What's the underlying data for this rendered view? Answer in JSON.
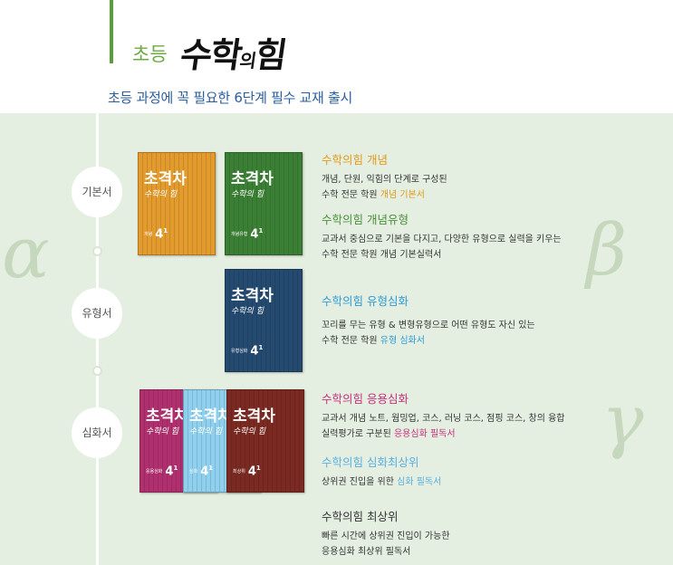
{
  "header": {
    "title_small": "초등",
    "title_big": "수학",
    "title_big_small": "의",
    "title_big_end": "힘",
    "subtitle": "초등 과정에 꼭 필요한 6단계 필수 교재 출시"
  },
  "greek": {
    "alpha": "α",
    "beta": "β",
    "gamma": "γ"
  },
  "timeline": [
    {
      "label": "기본서"
    },
    {
      "label": "유형서"
    },
    {
      "label": "심화서"
    }
  ],
  "books": [
    {
      "title": "초격차",
      "sub": "수학의 힘",
      "grade": "4",
      "sup": "1",
      "tag": "개념"
    },
    {
      "title": "초격차",
      "sub": "수학의 힘",
      "grade": "4",
      "sup": "1",
      "tag": "개념유형"
    },
    {
      "title": "초격차",
      "sub": "수학의 힘",
      "grade": "4",
      "sup": "1",
      "tag": "유형심화"
    },
    {
      "title": "초격차",
      "sub": "수학의 힘",
      "grade": "4",
      "sup": "1",
      "tag": "응용심화"
    },
    {
      "title": "초격차",
      "sub": "수학의 힘",
      "grade": "4",
      "sup": "1",
      "tag": "심화"
    },
    {
      "title": "초격차",
      "sub": "수학의 힘",
      "grade": "4",
      "sup": "1",
      "tag": "최상위"
    }
  ],
  "descriptions": [
    {
      "heading": "수학의힘 개념",
      "line1": "개념, 단원, 익힘의 단계로 구성된",
      "line2_prefix": "수학 전문 학원 ",
      "line2_highlight": "개념 기본서"
    },
    {
      "heading": "수학의힘 개념유형",
      "line1": "교과서 중심으로 기본을 다지고, 다양한 유형으로 실력을 키우는",
      "line2_prefix": "수학 전문 학원 개념 기본실력서",
      "line2_highlight": ""
    },
    {
      "heading": "수학의힘 유형심화",
      "line1": "꼬리를 무는 유형 & 변형유형으로 어떤 유형도 자신 있는",
      "line2_prefix": "수학 전문 학원 ",
      "line2_highlight": "유형 심화서"
    },
    {
      "heading": "수학의힘 응용심화",
      "line1": "교과서 개념 노트, 웜밍업, 코스, 러닝 코스, 점핑 코스, 창의 융합",
      "line2_prefix": "실력평가로 구분된 ",
      "line2_highlight": "응용심화 필독서"
    },
    {
      "heading": "수학의힘 심화최상위",
      "line1": "",
      "line2_prefix": "상위권 진입을 위한 ",
      "line2_highlight": "심화 필독서"
    },
    {
      "heading": "수학의힘 최상위",
      "line1": "빠른 시간에 상위권 진입이 가능한",
      "line2_prefix": "응용심화 최상위 필독서",
      "line2_highlight": ""
    }
  ]
}
